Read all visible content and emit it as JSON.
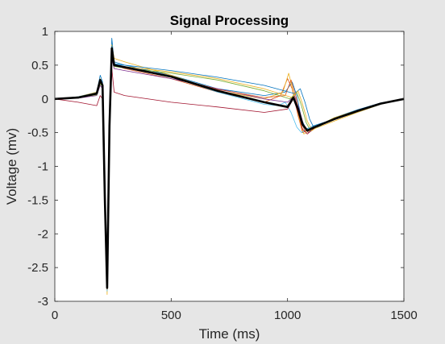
{
  "chart_data": {
    "type": "line",
    "title": "Signal Processing",
    "xlabel": "Time (ms)",
    "ylabel": "Voltage (mv)",
    "xlim": [
      0,
      1500
    ],
    "ylim": [
      -3,
      1
    ],
    "xticks": [
      0,
      500,
      1000,
      1500
    ],
    "yticks": [
      1,
      0.5,
      0,
      -0.5,
      -1,
      -1.5,
      -2,
      -2.5,
      -3
    ],
    "xtick_labels": [
      "0",
      "500",
      "1000",
      "1500"
    ],
    "ytick_labels": [
      "1",
      "0.5",
      "0",
      "-0.5",
      "-1",
      "-1.5",
      "-2",
      "-2.5",
      "-3"
    ],
    "grid": false,
    "legend": "none",
    "background_color": "#ffffff",
    "figure_color": "#e6e6e6",
    "series": [
      {
        "color": "#0072bd",
        "x": [
          0,
          100,
          180,
          195,
          205,
          215,
          225,
          235,
          245,
          255,
          300,
          500,
          700,
          900,
          990,
          1020,
          1040,
          1060,
          1080,
          1110,
          1200,
          1300,
          1400,
          1500
        ],
        "y": [
          0,
          0.03,
          0.1,
          0.35,
          0.25,
          -1.5,
          -2.8,
          -0.4,
          0.9,
          0.55,
          0.5,
          0.35,
          0.15,
          0.05,
          0.1,
          0.25,
          0.05,
          -0.3,
          -0.45,
          -0.4,
          -0.3,
          -0.2,
          -0.08,
          0
        ]
      },
      {
        "color": "#d95319",
        "x": [
          0,
          100,
          180,
          195,
          205,
          215,
          225,
          235,
          245,
          255,
          300,
          500,
          700,
          900,
          970,
          1000,
          1020,
          1045,
          1065,
          1100,
          1200,
          1300,
          1400,
          1500
        ],
        "y": [
          0,
          0.02,
          0.08,
          0.28,
          0.2,
          -1.4,
          -2.75,
          -0.35,
          0.75,
          0.5,
          0.45,
          0.3,
          0.1,
          -0.05,
          0.05,
          0.3,
          0.15,
          -0.25,
          -0.5,
          -0.45,
          -0.3,
          -0.18,
          -0.07,
          0
        ]
      },
      {
        "color": "#edb120",
        "x": [
          0,
          100,
          180,
          195,
          205,
          215,
          225,
          235,
          245,
          255,
          300,
          500,
          700,
          900,
          980,
          1005,
          1025,
          1050,
          1070,
          1110,
          1200,
          1300,
          1400,
          1500
        ],
        "y": [
          0,
          0.03,
          0.1,
          0.3,
          0.22,
          -1.6,
          -2.9,
          -0.3,
          0.8,
          0.6,
          0.55,
          0.35,
          0.12,
          0.0,
          0.1,
          0.38,
          0.1,
          -0.3,
          -0.52,
          -0.45,
          -0.33,
          -0.2,
          -0.08,
          0
        ]
      },
      {
        "color": "#7e2f8e",
        "x": [
          0,
          100,
          180,
          195,
          205,
          215,
          225,
          235,
          245,
          255,
          300,
          500,
          700,
          900,
          1000,
          1030,
          1050,
          1070,
          1090,
          1120,
          1200,
          1300,
          1400,
          1500
        ],
        "y": [
          0,
          0.01,
          0.05,
          0.2,
          0.15,
          -1.3,
          -2.7,
          -0.45,
          0.6,
          0.45,
          0.42,
          0.3,
          0.15,
          0.0,
          -0.05,
          0.05,
          -0.15,
          -0.4,
          -0.5,
          -0.42,
          -0.3,
          -0.18,
          -0.07,
          0
        ]
      },
      {
        "color": "#77ac30",
        "x": [
          0,
          100,
          180,
          195,
          205,
          215,
          225,
          235,
          245,
          255,
          300,
          500,
          700,
          900,
          1010,
          1040,
          1060,
          1080,
          1100,
          1130,
          1200,
          1300,
          1400,
          1500
        ],
        "y": [
          0,
          0.02,
          0.06,
          0.22,
          0.18,
          -1.45,
          -2.78,
          -0.4,
          0.7,
          0.48,
          0.46,
          0.38,
          0.28,
          0.12,
          0.0,
          0.1,
          -0.1,
          -0.35,
          -0.48,
          -0.4,
          -0.28,
          -0.17,
          -0.07,
          0
        ]
      },
      {
        "color": "#4dbeee",
        "x": [
          0,
          100,
          180,
          195,
          205,
          215,
          225,
          235,
          245,
          255,
          300,
          500,
          700,
          900,
          960,
          990,
          1015,
          1040,
          1060,
          1100,
          1200,
          1300,
          1400,
          1500
        ],
        "y": [
          0,
          0.03,
          0.09,
          0.27,
          0.21,
          -1.55,
          -2.85,
          -0.35,
          0.72,
          0.52,
          0.48,
          0.33,
          0.1,
          -0.08,
          -0.1,
          -0.05,
          -0.2,
          -0.42,
          -0.5,
          -0.42,
          -0.3,
          -0.18,
          -0.07,
          0
        ]
      },
      {
        "color": "#a2142f",
        "x": [
          0,
          100,
          180,
          195,
          205,
          215,
          225,
          235,
          245,
          255,
          300,
          500,
          700,
          900,
          1000,
          1025,
          1045,
          1065,
          1085,
          1120,
          1200,
          1300,
          1400,
          1500
        ],
        "y": [
          0,
          -0.05,
          -0.1,
          0.05,
          0.0,
          -1.2,
          -2.6,
          -0.5,
          0.45,
          0.1,
          0.05,
          -0.05,
          -0.12,
          -0.2,
          -0.15,
          0.0,
          -0.2,
          -0.45,
          -0.52,
          -0.42,
          -0.3,
          -0.18,
          -0.07,
          0
        ]
      },
      {
        "color": "#0072bd",
        "x": [
          0,
          100,
          180,
          195,
          205,
          215,
          225,
          235,
          245,
          255,
          300,
          500,
          700,
          900,
          1030,
          1055,
          1075,
          1095,
          1115,
          1140,
          1200,
          1300,
          1400,
          1500
        ],
        "y": [
          0,
          0.02,
          0.07,
          0.25,
          0.18,
          -1.5,
          -2.8,
          -0.38,
          0.78,
          0.52,
          0.5,
          0.42,
          0.32,
          0.2,
          0.08,
          0.15,
          -0.05,
          -0.3,
          -0.44,
          -0.4,
          -0.28,
          -0.16,
          -0.06,
          0
        ]
      },
      {
        "color": "#d95319",
        "x": [
          0,
          100,
          180,
          195,
          205,
          215,
          225,
          235,
          245,
          255,
          300,
          500,
          700,
          900,
          990,
          1015,
          1035,
          1055,
          1075,
          1110,
          1200,
          1300,
          1400,
          1500
        ],
        "y": [
          0,
          0.02,
          0.08,
          0.26,
          0.2,
          -1.45,
          -2.82,
          -0.4,
          0.74,
          0.5,
          0.47,
          0.33,
          0.14,
          0.02,
          0.05,
          0.28,
          0.05,
          -0.3,
          -0.48,
          -0.42,
          -0.3,
          -0.18,
          -0.07,
          0
        ]
      },
      {
        "color": "#edb120",
        "x": [
          0,
          100,
          180,
          195,
          205,
          215,
          225,
          235,
          245,
          255,
          300,
          500,
          700,
          900,
          1020,
          1045,
          1065,
          1085,
          1105,
          1135,
          1200,
          1300,
          1400,
          1500
        ],
        "y": [
          0,
          0.02,
          0.07,
          0.24,
          0.19,
          -1.5,
          -2.8,
          -0.4,
          0.7,
          0.5,
          0.48,
          0.4,
          0.3,
          0.15,
          0.02,
          0.12,
          -0.08,
          -0.33,
          -0.47,
          -0.4,
          -0.28,
          -0.17,
          -0.07,
          0
        ]
      },
      {
        "color": "#000000",
        "width": 2.6,
        "x": [
          0,
          100,
          180,
          195,
          205,
          215,
          225,
          235,
          245,
          255,
          300,
          500,
          700,
          900,
          1000,
          1025,
          1045,
          1065,
          1085,
          1115,
          1200,
          1300,
          1400,
          1500
        ],
        "y": [
          0,
          0.02,
          0.08,
          0.28,
          0.2,
          -1.5,
          -2.8,
          -0.4,
          0.75,
          0.5,
          0.47,
          0.33,
          0.12,
          -0.05,
          -0.12,
          0.02,
          -0.15,
          -0.38,
          -0.47,
          -0.42,
          -0.3,
          -0.18,
          -0.07,
          0
        ]
      }
    ]
  }
}
